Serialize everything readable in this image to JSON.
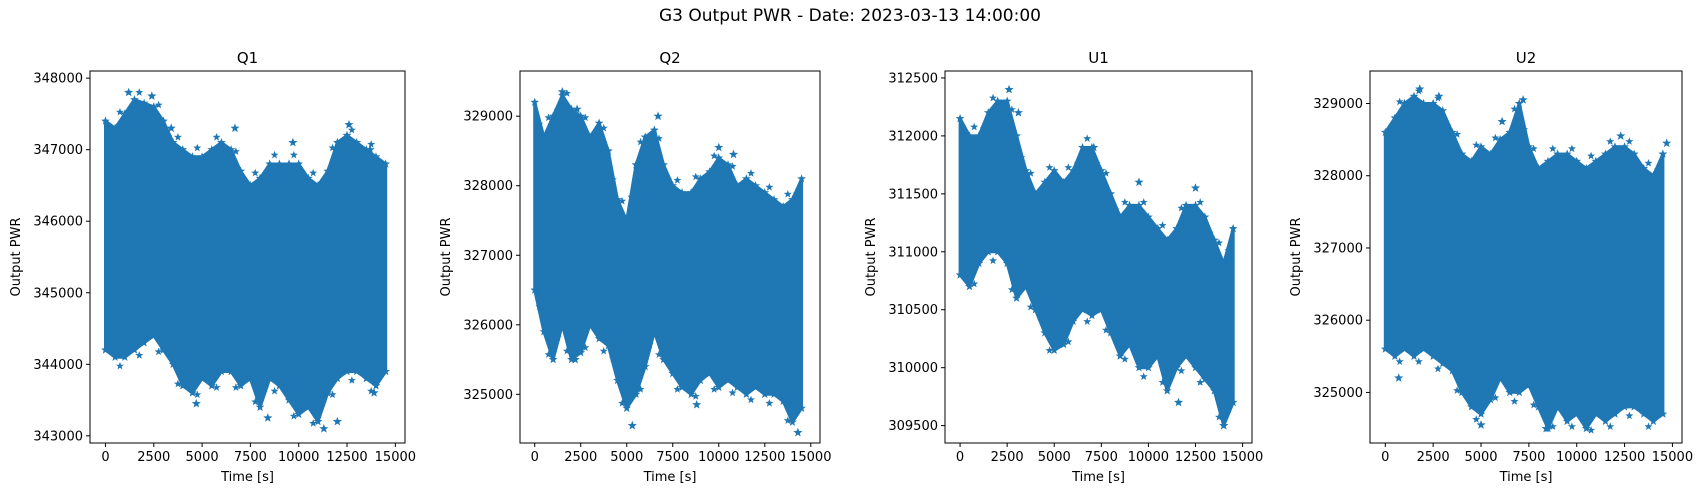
{
  "figure": {
    "title": "G3 Output PWR - Date: 2023-03-13 14:00:00",
    "marker_color": "#1f77b4"
  },
  "chart_data": [
    {
      "type": "scatter",
      "marker": "star",
      "title": "Q1",
      "xlabel": "Time [s]",
      "ylabel": "Output PWR",
      "xlim": [
        -800,
        15500
      ],
      "ylim": [
        342900,
        348100
      ],
      "xticks": [
        0,
        2500,
        5000,
        7500,
        10000,
        12500,
        15000
      ],
      "yticks": [
        343000,
        344000,
        345000,
        346000,
        347000,
        348000
      ],
      "x": [
        0,
        500,
        1000,
        1500,
        2000,
        2500,
        3000,
        3500,
        4000,
        4500,
        5000,
        5500,
        6000,
        6500,
        7000,
        7500,
        8000,
        8500,
        9000,
        9500,
        10000,
        10500,
        11000,
        11500,
        12000,
        12500,
        13000,
        13500,
        14000,
        14500
      ],
      "upper": [
        347400,
        347300,
        347500,
        347700,
        347650,
        347600,
        347400,
        347100,
        347000,
        346900,
        346900,
        347000,
        347100,
        347000,
        346700,
        346500,
        346600,
        346800,
        346800,
        346800,
        346800,
        346600,
        346500,
        346700,
        347100,
        347200,
        347100,
        347000,
        346900,
        346800
      ],
      "lower": [
        344200,
        344100,
        344100,
        344200,
        344300,
        344400,
        344200,
        344000,
        343700,
        343600,
        343800,
        343700,
        343900,
        343900,
        343700,
        343800,
        343400,
        343800,
        343700,
        343500,
        343300,
        343400,
        343200,
        343600,
        343800,
        343900,
        343900,
        343800,
        343700,
        343900
      ],
      "outliers": [
        [
          1200,
          347800
        ],
        [
          2400,
          347750
        ],
        [
          3400,
          347300
        ],
        [
          6700,
          347300
        ],
        [
          9700,
          347100
        ],
        [
          12600,
          347350
        ],
        [
          13700,
          347000
        ],
        [
          4700,
          343450
        ],
        [
          8400,
          343250
        ],
        [
          11300,
          343100
        ],
        [
          12000,
          343200
        ],
        [
          13900,
          343600
        ]
      ]
    },
    {
      "type": "scatter",
      "marker": "star",
      "title": "Q2",
      "xlabel": "Time [s]",
      "ylabel": "Output PWR",
      "xlim": [
        -800,
        15500
      ],
      "ylim": [
        324300,
        329650
      ],
      "xticks": [
        0,
        2500,
        5000,
        7500,
        10000,
        12500,
        15000
      ],
      "yticks": [
        325000,
        326000,
        327000,
        328000,
        329000
      ],
      "x": [
        0,
        500,
        1000,
        1500,
        2000,
        2500,
        3000,
        3500,
        4000,
        4500,
        5000,
        5500,
        6000,
        6500,
        7000,
        7500,
        8000,
        8500,
        9000,
        9500,
        10000,
        10500,
        11000,
        11500,
        12000,
        12500,
        13000,
        13500,
        14000,
        14500
      ],
      "upper": [
        329200,
        328700,
        329000,
        329300,
        329100,
        329000,
        328700,
        328900,
        328500,
        327800,
        327500,
        328300,
        328700,
        328800,
        328300,
        328000,
        327900,
        327900,
        328100,
        328200,
        328400,
        328300,
        328000,
        328100,
        328000,
        327900,
        327800,
        327700,
        327800,
        328100
      ],
      "lower": [
        326500,
        325900,
        325500,
        326000,
        325500,
        325600,
        326000,
        325800,
        325700,
        325200,
        324800,
        325000,
        325400,
        325900,
        325500,
        325300,
        325100,
        325000,
        325200,
        325300,
        325100,
        325200,
        325100,
        325000,
        325100,
        325000,
        325000,
        324900,
        324600,
        324800
      ],
      "outliers": [
        [
          1500,
          329350
        ],
        [
          2300,
          329100
        ],
        [
          6700,
          329000
        ],
        [
          10000,
          328550
        ],
        [
          10800,
          328450
        ],
        [
          5300,
          324550
        ],
        [
          8800,
          324850
        ],
        [
          14300,
          324450
        ],
        [
          2200,
          325500
        ]
      ]
    },
    {
      "type": "scatter",
      "marker": "star",
      "title": "U1",
      "xlabel": "Time [s]",
      "ylabel": "Output PWR",
      "xlim": [
        -800,
        15500
      ],
      "ylim": [
        309350,
        312560
      ],
      "xticks": [
        0,
        2500,
        5000,
        7500,
        10000,
        12500,
        15000
      ],
      "yticks": [
        309500,
        310000,
        310500,
        311000,
        311500,
        312000,
        312500
      ],
      "x": [
        0,
        500,
        1000,
        1500,
        2000,
        2500,
        3000,
        3500,
        4000,
        4500,
        5000,
        5500,
        6000,
        6500,
        7000,
        7500,
        8000,
        8500,
        9000,
        9500,
        10000,
        10500,
        11000,
        11500,
        12000,
        12500,
        13000,
        13500,
        14000,
        14500
      ],
      "upper": [
        312150,
        312000,
        312000,
        312200,
        312300,
        312300,
        312000,
        311700,
        311500,
        311600,
        311700,
        311600,
        311700,
        311900,
        311900,
        311700,
        311500,
        311300,
        311400,
        311400,
        311300,
        311200,
        311100,
        311200,
        311400,
        311400,
        311300,
        311100,
        310900,
        311200
      ],
      "lower": [
        310800,
        310700,
        310900,
        311000,
        311000,
        310900,
        310600,
        310700,
        310500,
        310300,
        310150,
        310200,
        310400,
        310500,
        310450,
        310500,
        310300,
        310100,
        310200,
        310000,
        310000,
        310100,
        309800,
        310000,
        310100,
        310000,
        309900,
        309800,
        309500,
        309700
      ],
      "outliers": [
        [
          2600,
          312400
        ],
        [
          3100,
          312200
        ],
        [
          7100,
          311900
        ],
        [
          9500,
          311600
        ],
        [
          12500,
          311550
        ],
        [
          14000,
          309500
        ],
        [
          11600,
          309700
        ]
      ]
    },
    {
      "type": "scatter",
      "marker": "star",
      "title": "U2",
      "xlabel": "Time [s]",
      "ylabel": "Output PWR",
      "xlim": [
        -800,
        15500
      ],
      "ylim": [
        324300,
        329450
      ],
      "xticks": [
        0,
        2500,
        5000,
        7500,
        10000,
        12500,
        15000
      ],
      "yticks": [
        325000,
        326000,
        327000,
        328000,
        329000
      ],
      "x": [
        0,
        500,
        1000,
        1500,
        2000,
        2500,
        3000,
        3500,
        4000,
        4500,
        5000,
        5500,
        6000,
        6500,
        7000,
        7500,
        8000,
        8500,
        9000,
        9500,
        10000,
        10500,
        11000,
        11500,
        12000,
        12500,
        13000,
        13500,
        14000,
        14500
      ],
      "upper": [
        328600,
        328800,
        329000,
        329100,
        329000,
        329000,
        328900,
        328600,
        328300,
        328200,
        328400,
        328300,
        328500,
        328600,
        329000,
        328400,
        328100,
        328200,
        328300,
        328300,
        328200,
        328100,
        328200,
        328300,
        328400,
        328400,
        328300,
        328100,
        328000,
        328300
      ],
      "lower": [
        325600,
        325500,
        325600,
        325500,
        325600,
        325500,
        325400,
        325300,
        325000,
        324800,
        324700,
        324900,
        325200,
        325000,
        325000,
        325100,
        324800,
        324500,
        324800,
        324600,
        324700,
        324500,
        324700,
        324600,
        324700,
        324800,
        324800,
        324700,
        324600,
        324700
      ],
      "outliers": [
        [
          1800,
          329200
        ],
        [
          2800,
          329100
        ],
        [
          7200,
          329050
        ],
        [
          6100,
          328750
        ],
        [
          12300,
          328550
        ],
        [
          14700,
          328450
        ],
        [
          700,
          325200
        ],
        [
          5000,
          324550
        ],
        [
          8400,
          324500
        ]
      ]
    }
  ]
}
